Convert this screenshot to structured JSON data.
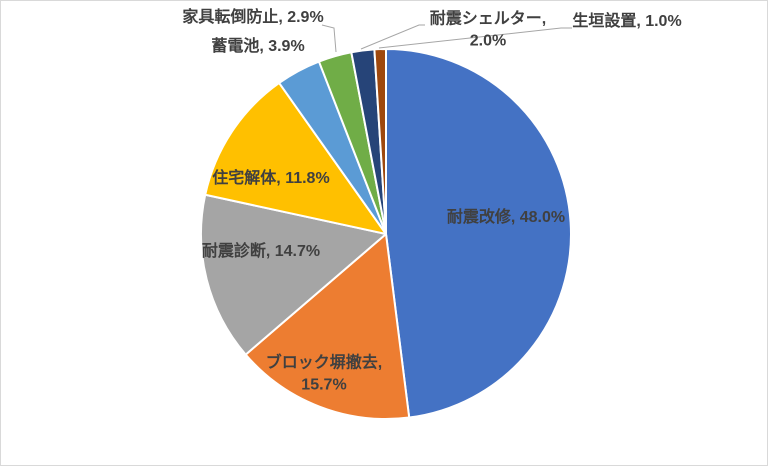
{
  "chart_data": {
    "type": "pie",
    "title": "",
    "direction": "clockwise",
    "start_angle_deg": 0,
    "label_text_color": "#404040",
    "leader_line_color": "#A6A6A6",
    "background": "#FFFFFF",
    "border_color": "#D9D9D9",
    "slices": [
      {
        "name": "耐震改修",
        "value": 48.0,
        "color": "#4472C4",
        "label_line1": "耐震改修, 48.0%"
      },
      {
        "name": "ブロック塀撤去",
        "value": 15.7,
        "color": "#ED7D31",
        "label_line1": "ブロック塀撤去,",
        "label_line2": "15.7%"
      },
      {
        "name": "耐震診断",
        "value": 14.7,
        "color": "#A5A5A5",
        "label_line1": "耐震診断, 14.7%"
      },
      {
        "name": "住宅解体",
        "value": 11.8,
        "color": "#FFC000",
        "label_line1": "住宅解体, 11.8%"
      },
      {
        "name": "蓄電池",
        "value": 3.9,
        "color": "#5B9BD5",
        "label_line1": "蓄電池, 3.9%"
      },
      {
        "name": "家具転倒防止",
        "value": 2.9,
        "color": "#70AD47",
        "label_line1": "家具転倒防止, 2.9%"
      },
      {
        "name": "耐震シェルター",
        "value": 2.0,
        "color": "#264478",
        "label_line1": "耐震シェルター,",
        "label_line2": "2.0%"
      },
      {
        "name": "生垣設置",
        "value": 1.0,
        "color": "#9E480E",
        "label_line1": "生垣設置, 1.0%"
      }
    ]
  }
}
